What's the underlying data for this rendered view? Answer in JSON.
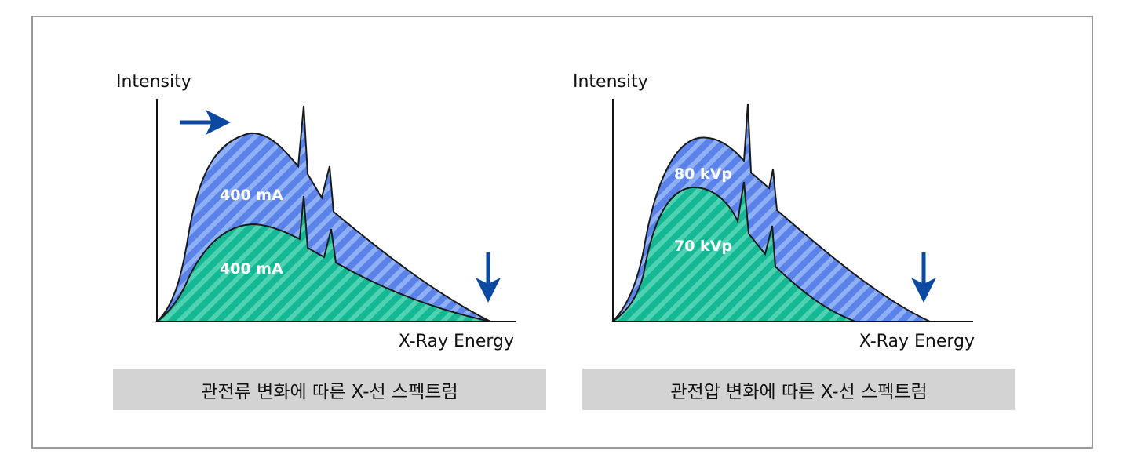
{
  "panels": [
    {
      "y_axis_label": "Intensity",
      "x_axis_label": "X-Ray Energy",
      "outer_label": "400 mA",
      "inner_label": "400 mA",
      "caption": "관전류 변화에 따른 X-선 스펙트럼"
    },
    {
      "y_axis_label": "Intensity",
      "x_axis_label": "X-Ray Energy",
      "outer_label": "80 kVp",
      "inner_label": "70 kVp",
      "caption": "관전압 변화에 따른 X-선 스펙트럼"
    }
  ],
  "colors": {
    "outer_fill": "#5b82e8",
    "outer_stripe": "#8fb0f4",
    "inner_fill": "#14b894",
    "inner_stripe": "#4fd2b2",
    "arrow": "#0b4aa0",
    "outline": "#1a1a1a",
    "caption_bg": "#d3d3d3",
    "frame_border": "#9a9a9a"
  },
  "icons": {
    "left_top_arrow": "arrow-right-icon",
    "left_bottom_arrow": "arrow-down-icon",
    "right_bottom_arrow": "arrow-down-icon"
  }
}
